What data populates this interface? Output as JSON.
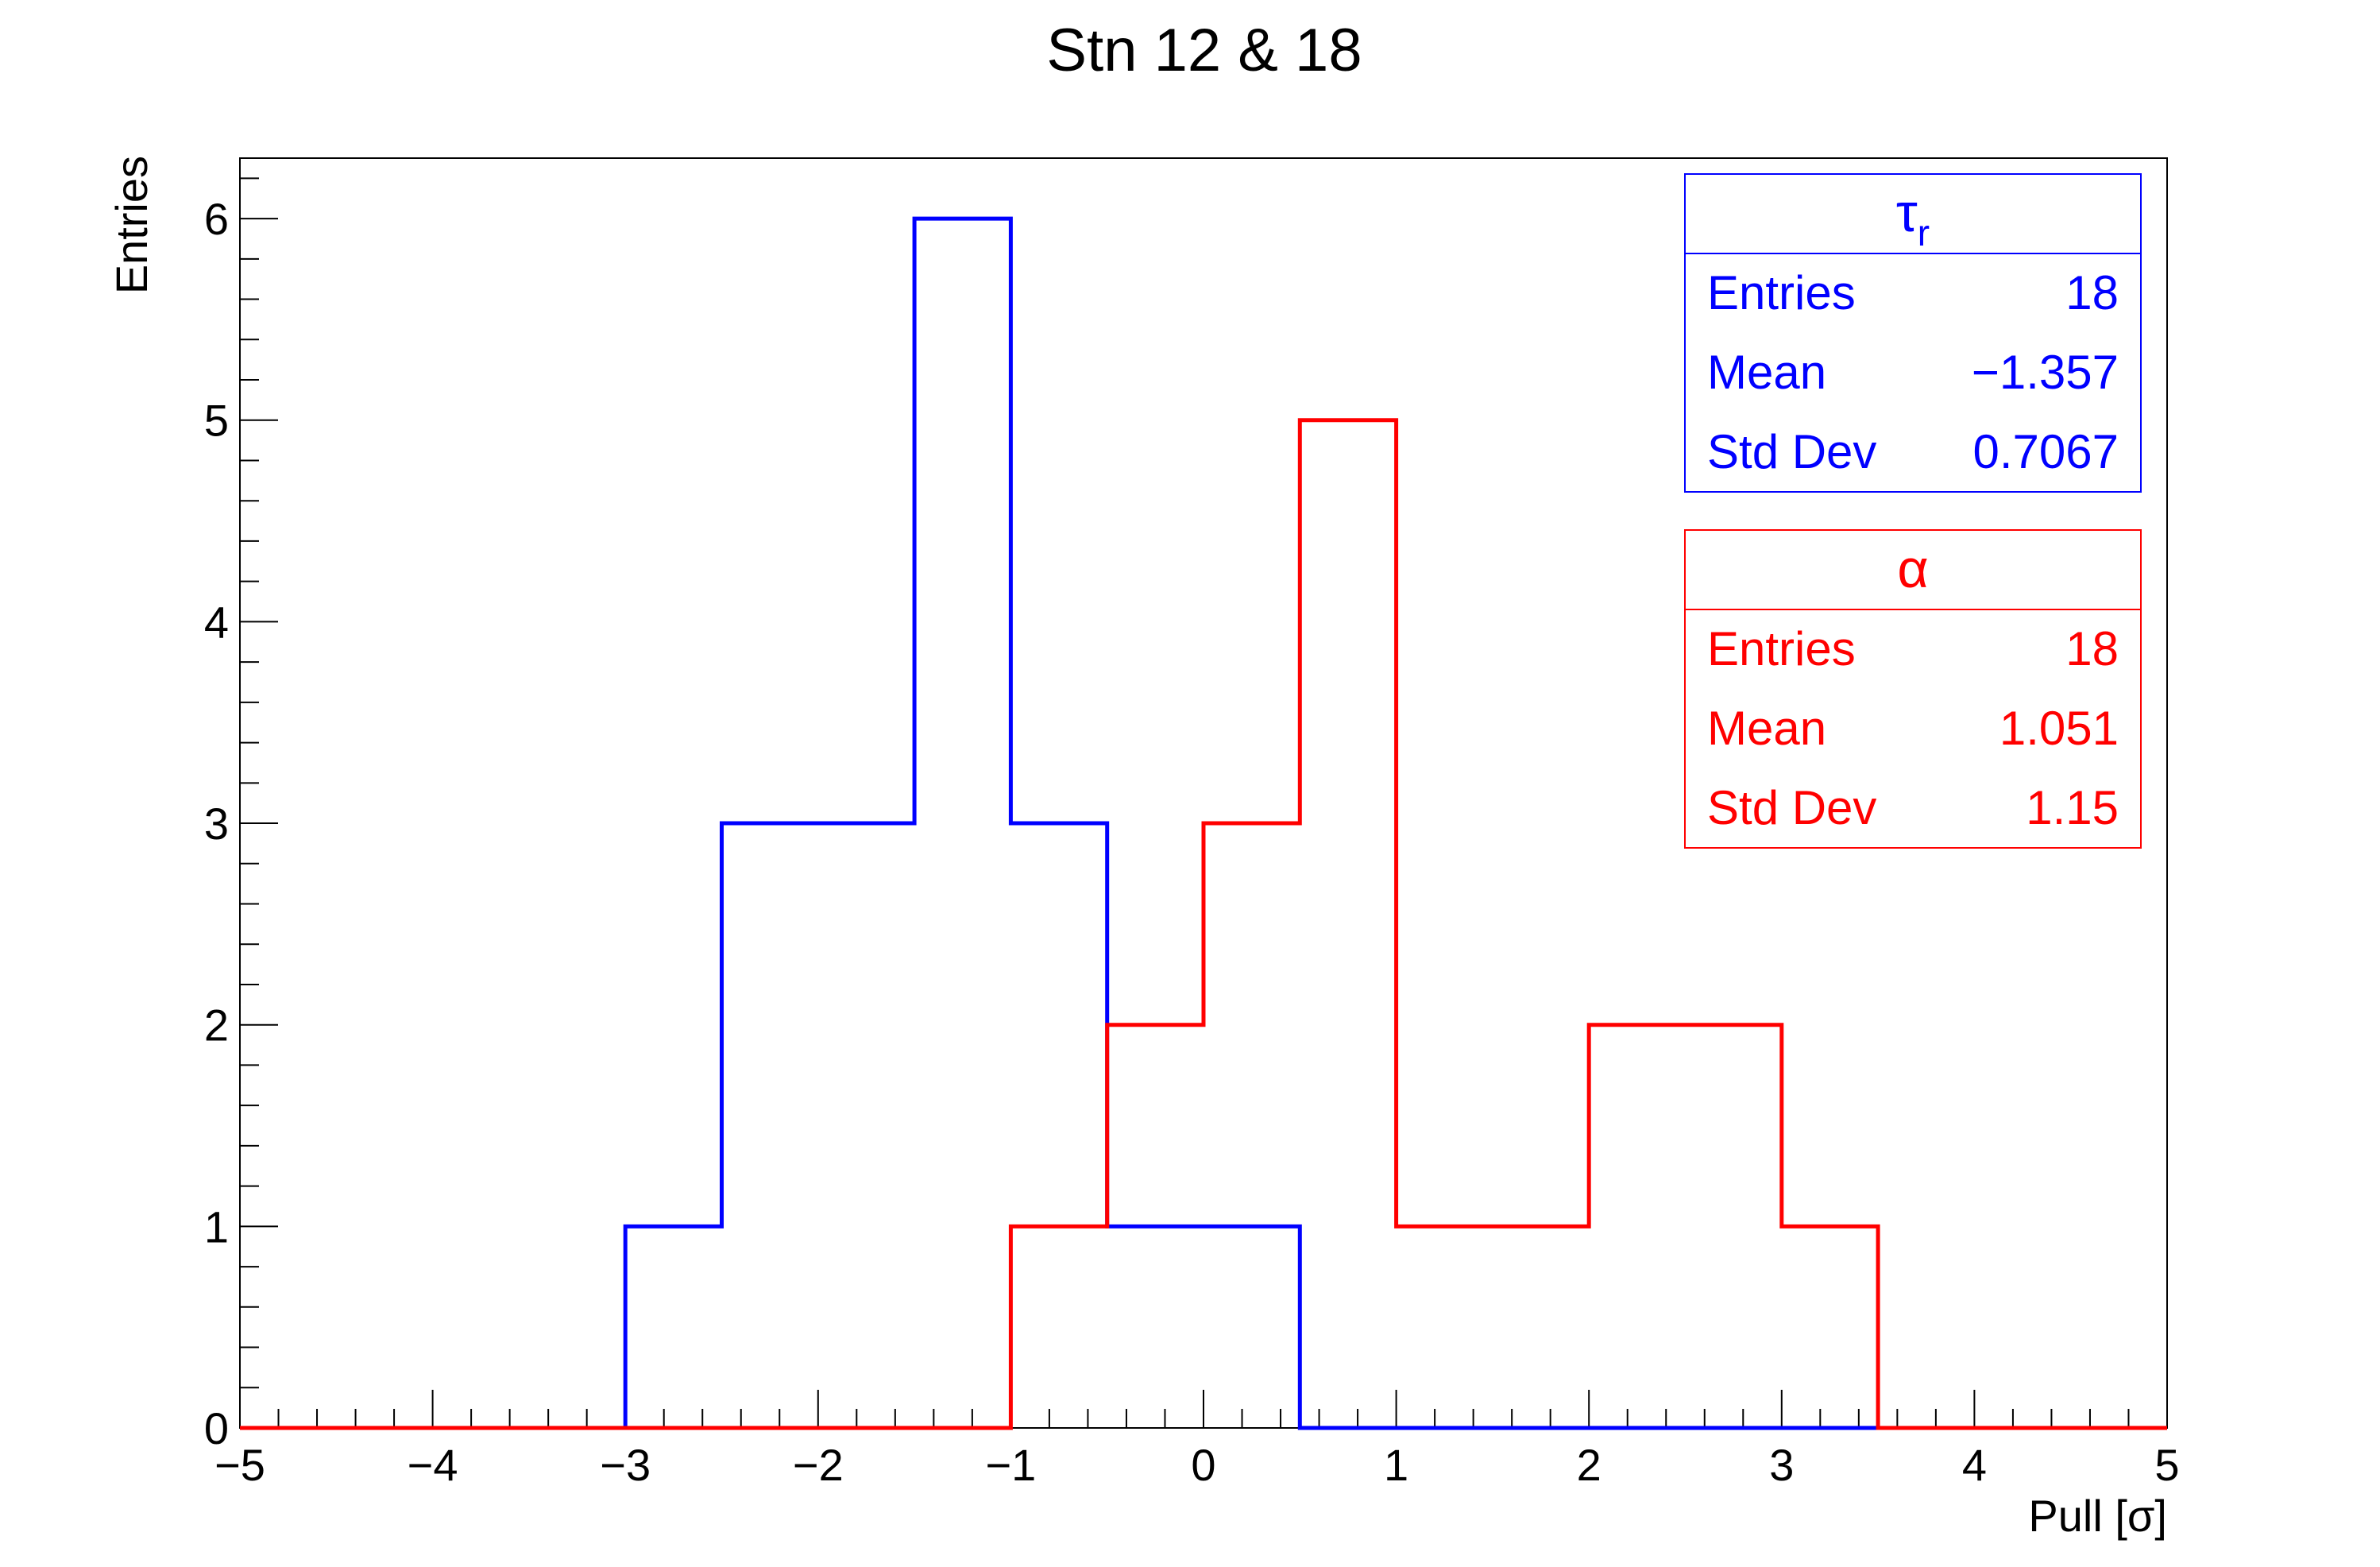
{
  "chart_data": {
    "type": "histogram",
    "title": "Stn 12 & 18",
    "xlabel": "Pull [σ]",
    "ylabel": "Entries",
    "xlim": [
      -5,
      5
    ],
    "ylim": [
      0,
      6.3
    ],
    "bin_edges": [
      -5,
      -4.5,
      -4,
      -3.5,
      -3,
      -2.5,
      -2,
      -1.5,
      -1,
      -0.5,
      0,
      0.5,
      1,
      1.5,
      2,
      2.5,
      3,
      3.5,
      4,
      4.5,
      5
    ],
    "x_ticks": [
      {
        "value": -5,
        "label": "−5"
      },
      {
        "value": -4,
        "label": "−4"
      },
      {
        "value": -3,
        "label": "−3"
      },
      {
        "value": -2,
        "label": "−2"
      },
      {
        "value": -1,
        "label": "−1"
      },
      {
        "value": 0,
        "label": "0"
      },
      {
        "value": 1,
        "label": "1"
      },
      {
        "value": 2,
        "label": "2"
      },
      {
        "value": 3,
        "label": "3"
      },
      {
        "value": 4,
        "label": "4"
      },
      {
        "value": 5,
        "label": "5"
      }
    ],
    "y_ticks": [
      {
        "value": 0,
        "label": "0"
      },
      {
        "value": 1,
        "label": "1"
      },
      {
        "value": 2,
        "label": "2"
      },
      {
        "value": 3,
        "label": "3"
      },
      {
        "value": 4,
        "label": "4"
      },
      {
        "value": 5,
        "label": "5"
      },
      {
        "value": 6,
        "label": "6"
      }
    ],
    "series": [
      {
        "name": "τr",
        "color": "#0000ff",
        "values": [
          0,
          0,
          0,
          0,
          1,
          3,
          3,
          6,
          3,
          1,
          1,
          0,
          0,
          0,
          0,
          0,
          0,
          0,
          0,
          0
        ],
        "stats": {
          "title_main": "τ",
          "title_sub": "r",
          "rows": [
            {
              "label": "Entries",
              "value": "18"
            },
            {
              "label": "Mean",
              "value": "−1.357"
            },
            {
              "label": "Std Dev",
              "value": "0.7067"
            }
          ]
        }
      },
      {
        "name": "α",
        "color": "#ff0000",
        "values": [
          0,
          0,
          0,
          0,
          0,
          0,
          0,
          0,
          1,
          2,
          3,
          5,
          1,
          1,
          2,
          2,
          1,
          0,
          0,
          0
        ],
        "stats": {
          "title_main": "α",
          "title_sub": "",
          "rows": [
            {
              "label": "Entries",
              "value": "18"
            },
            {
              "label": "Mean",
              "value": "1.051"
            },
            {
              "label": "Std Dev",
              "value": "1.15"
            }
          ]
        }
      }
    ]
  }
}
